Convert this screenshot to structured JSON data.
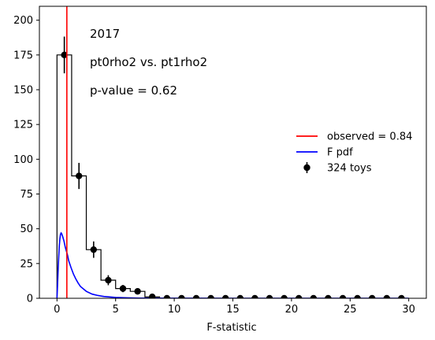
{
  "chart_data": {
    "type": "histogram",
    "xlabel": "F-statistic",
    "ylabel": "",
    "xlim": [
      -1.5,
      31.5
    ],
    "ylim": [
      0,
      210
    ],
    "x_ticks": [
      0,
      5,
      10,
      15,
      20,
      25,
      30
    ],
    "y_ticks": [
      0,
      25,
      50,
      75,
      100,
      125,
      150,
      175,
      200
    ],
    "annotations": [
      "2017",
      "pt0rho2 vs. pt1rho2",
      "p-value = 0.62"
    ],
    "histogram": {
      "bin_edges": [
        0.0,
        1.25,
        2.5,
        3.75,
        5.0,
        6.25,
        7.5,
        8.75,
        10.0,
        11.25,
        12.5,
        13.75,
        15.0,
        16.25,
        17.5,
        18.75,
        20.0,
        21.25,
        22.5,
        23.75,
        25.0,
        26.25,
        27.5,
        28.75,
        30.0
      ],
      "counts": [
        175,
        88,
        35,
        13,
        7,
        5,
        1,
        0,
        0,
        0,
        0,
        0,
        0,
        0,
        0,
        0,
        0,
        0,
        0,
        0,
        0,
        0,
        0,
        0
      ],
      "color": "#000000"
    },
    "series": [
      {
        "name": "324 toys",
        "type": "errorbar",
        "x": [
          0.625,
          1.875,
          3.125,
          4.375,
          5.625,
          6.875,
          8.125,
          9.375,
          10.625,
          11.875,
          13.125,
          14.375,
          15.625,
          16.875,
          18.125,
          19.375,
          20.625,
          21.875,
          23.125,
          24.375,
          25.625,
          26.875,
          28.125,
          29.375
        ],
        "y": [
          175,
          88,
          35,
          13,
          7,
          5,
          1,
          0,
          0,
          0,
          0,
          0,
          0,
          0,
          0,
          0,
          0,
          0,
          0,
          0,
          0,
          0,
          0,
          0
        ],
        "yerr": [
          13.2,
          9.4,
          5.9,
          3.6,
          2.6,
          2.2,
          1.0,
          0,
          0,
          0,
          0,
          0,
          0,
          0,
          0,
          0,
          0,
          0,
          0,
          0,
          0,
          0,
          0,
          0
        ],
        "color": "#000000"
      },
      {
        "name": "F pdf",
        "type": "line",
        "x": [
          0.0,
          0.05,
          0.1,
          0.15,
          0.2,
          0.25,
          0.3,
          0.35,
          0.4,
          0.5,
          0.6,
          0.7,
          0.8,
          0.9,
          1.0,
          1.2,
          1.4,
          1.6,
          1.8,
          2.0,
          2.5,
          3.0,
          3.5,
          4.0,
          5.0,
          6.0,
          7.0,
          8.0,
          10.0,
          15.0,
          20.0,
          25.0,
          30.0
        ],
        "y": [
          0,
          10,
          21,
          30,
          38,
          43,
          46,
          47,
          46.5,
          44,
          41,
          37,
          34,
          31,
          27,
          22,
          17.5,
          14,
          11,
          8.5,
          5,
          3,
          2,
          1.3,
          0.6,
          0.3,
          0.15,
          0.1,
          0.03,
          0,
          0,
          0,
          0
        ],
        "color": "#0000ff"
      },
      {
        "name": "observed = 0.84",
        "type": "vline",
        "x": 0.84,
        "color": "#ff0000"
      }
    ],
    "legend": {
      "placement": "center-right",
      "entries": [
        "observed = 0.84",
        "F pdf",
        "324 toys"
      ]
    },
    "grid": false
  }
}
